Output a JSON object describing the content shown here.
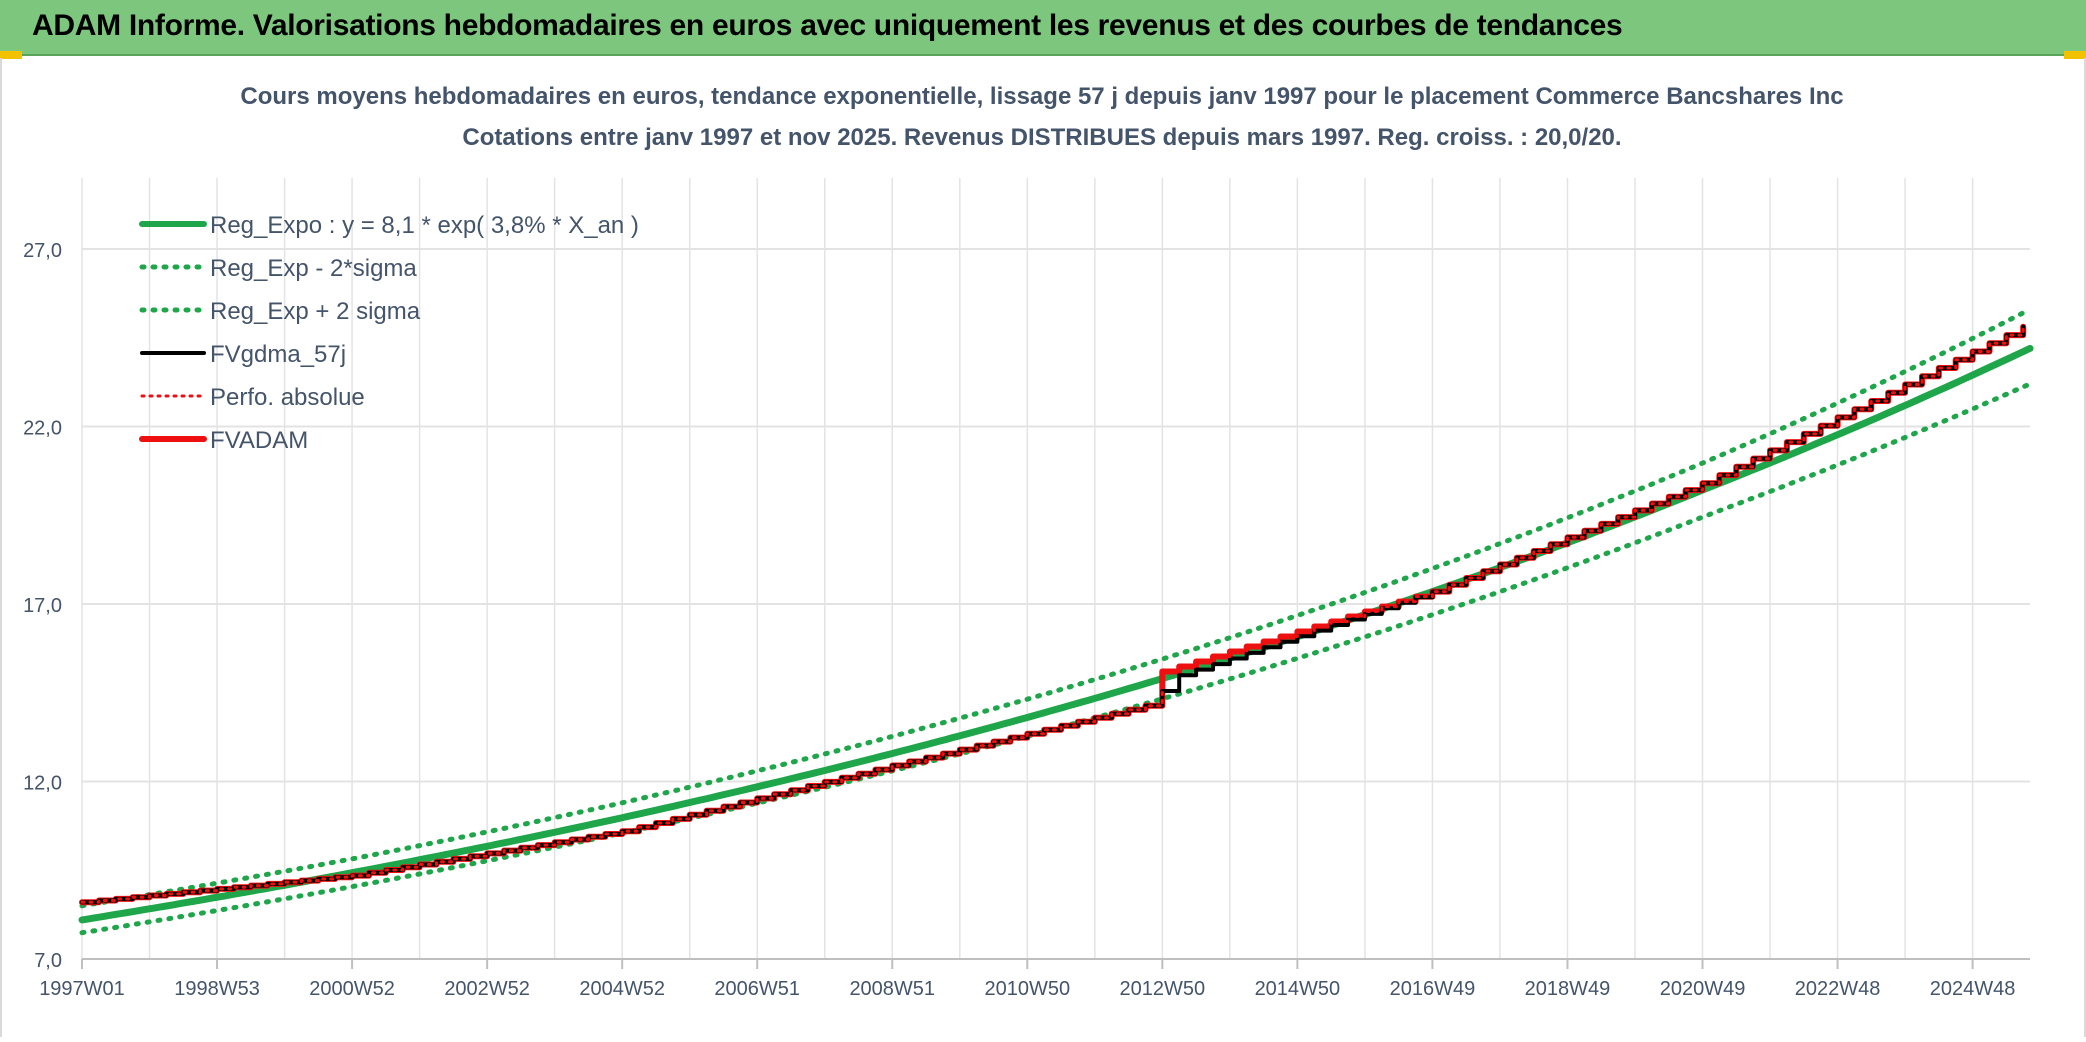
{
  "header": {
    "title": "ADAM Informe. Valorisations hebdomadaires en euros avec uniquement les revenus et des courbes de tendances"
  },
  "colors": {
    "header_bg": "#7dc67d",
    "green": "#1fa64a",
    "black": "#000000",
    "red": "#ee1010",
    "grid": "#e3e3e3",
    "text": "#44546a"
  },
  "chart_data": {
    "type": "line",
    "title_line1": "Cours moyens hebdomadaires en euros, tendance exponentielle, lissage 57 j depuis janv 1997 pour le placement Commerce Bancshares Inc",
    "title_line2": "Cotations entre janv 1997 et nov 2025. Revenus DISTRIBUES depuis mars 1997. Reg. croiss. : 20,0/20.",
    "xlabel": "",
    "ylabel": "",
    "ylim": [
      7.0,
      29.0
    ],
    "yticks": [
      "7,0",
      "12,0",
      "17,0",
      "22,0",
      "27,0"
    ],
    "ytick_values": [
      7,
      12,
      17,
      22,
      27
    ],
    "xtick_labels": [
      "1997W01",
      "1998W53",
      "2000W52",
      "2002W52",
      "2004W52",
      "2006W51",
      "2008W51",
      "2010W50",
      "2012W50",
      "2014W50",
      "2016W49",
      "2018W49",
      "2020W49",
      "2022W48",
      "2024W48"
    ],
    "xtick_years": [
      1997.0,
      1999.0,
      2001.0,
      2003.0,
      2005.0,
      2007.0,
      2009.0,
      2011.0,
      2013.0,
      2015.0,
      2017.0,
      2019.0,
      2021.0,
      2023.0,
      2025.0
    ],
    "x_range_years": [
      1997.0,
      2025.85
    ],
    "grid": true,
    "legend_position": "top-left",
    "series": [
      {
        "name": "Reg_Expo : y = 8,1 * exp( 3,8% *  X_an )",
        "style": "solid-green",
        "x": [
          1997.0,
          2001.0,
          2005.0,
          2009.0,
          2013.0,
          2017.0,
          2021.0,
          2025.85
        ],
        "values": [
          8.1,
          9.43,
          10.98,
          12.79,
          14.9,
          17.35,
          20.21,
          24.2
        ]
      },
      {
        "name": "Reg_Exp - 2*sigma",
        "style": "dotted-green",
        "x": [
          1997.0,
          2001.0,
          2005.0,
          2009.0,
          2013.0,
          2017.0,
          2021.0,
          2025.85
        ],
        "values": [
          7.74,
          9.04,
          10.55,
          12.3,
          14.33,
          16.7,
          19.45,
          23.2
        ]
      },
      {
        "name": "Reg_Exp + 2 sigma",
        "style": "dotted-green",
        "x": [
          1997.0,
          2001.0,
          2005.0,
          2009.0,
          2013.0,
          2017.0,
          2021.0,
          2025.85
        ],
        "values": [
          8.5,
          9.82,
          11.4,
          13.27,
          15.45,
          18.0,
          20.97,
          25.3
        ]
      },
      {
        "name": "FVgdma_57j",
        "style": "solid-black",
        "x": [
          1997.0,
          2001.0,
          2005.0,
          2009.0,
          2012.9,
          2013.1,
          2017.0,
          2021.0,
          2025.85
        ],
        "values": [
          8.6,
          9.35,
          10.6,
          12.45,
          14.2,
          14.9,
          17.35,
          20.4,
          24.9
        ]
      },
      {
        "name": "Perfo. absolue",
        "style": "dotted-red",
        "x": [
          1997.0,
          2001.0,
          2005.0,
          2009.0,
          2012.9,
          2013.0,
          2017.0,
          2021.0,
          2025.85
        ],
        "values": [
          8.6,
          9.35,
          10.6,
          12.45,
          14.2,
          15.1,
          17.35,
          20.4,
          24.9
        ]
      },
      {
        "name": "FVADAM",
        "style": "solid-red",
        "x": [
          1997.0,
          2001.0,
          2005.0,
          2009.0,
          2012.9,
          2013.0,
          2017.0,
          2021.0,
          2025.85
        ],
        "values": [
          8.6,
          9.35,
          10.6,
          12.45,
          14.2,
          15.1,
          17.35,
          20.4,
          24.9
        ]
      }
    ]
  }
}
